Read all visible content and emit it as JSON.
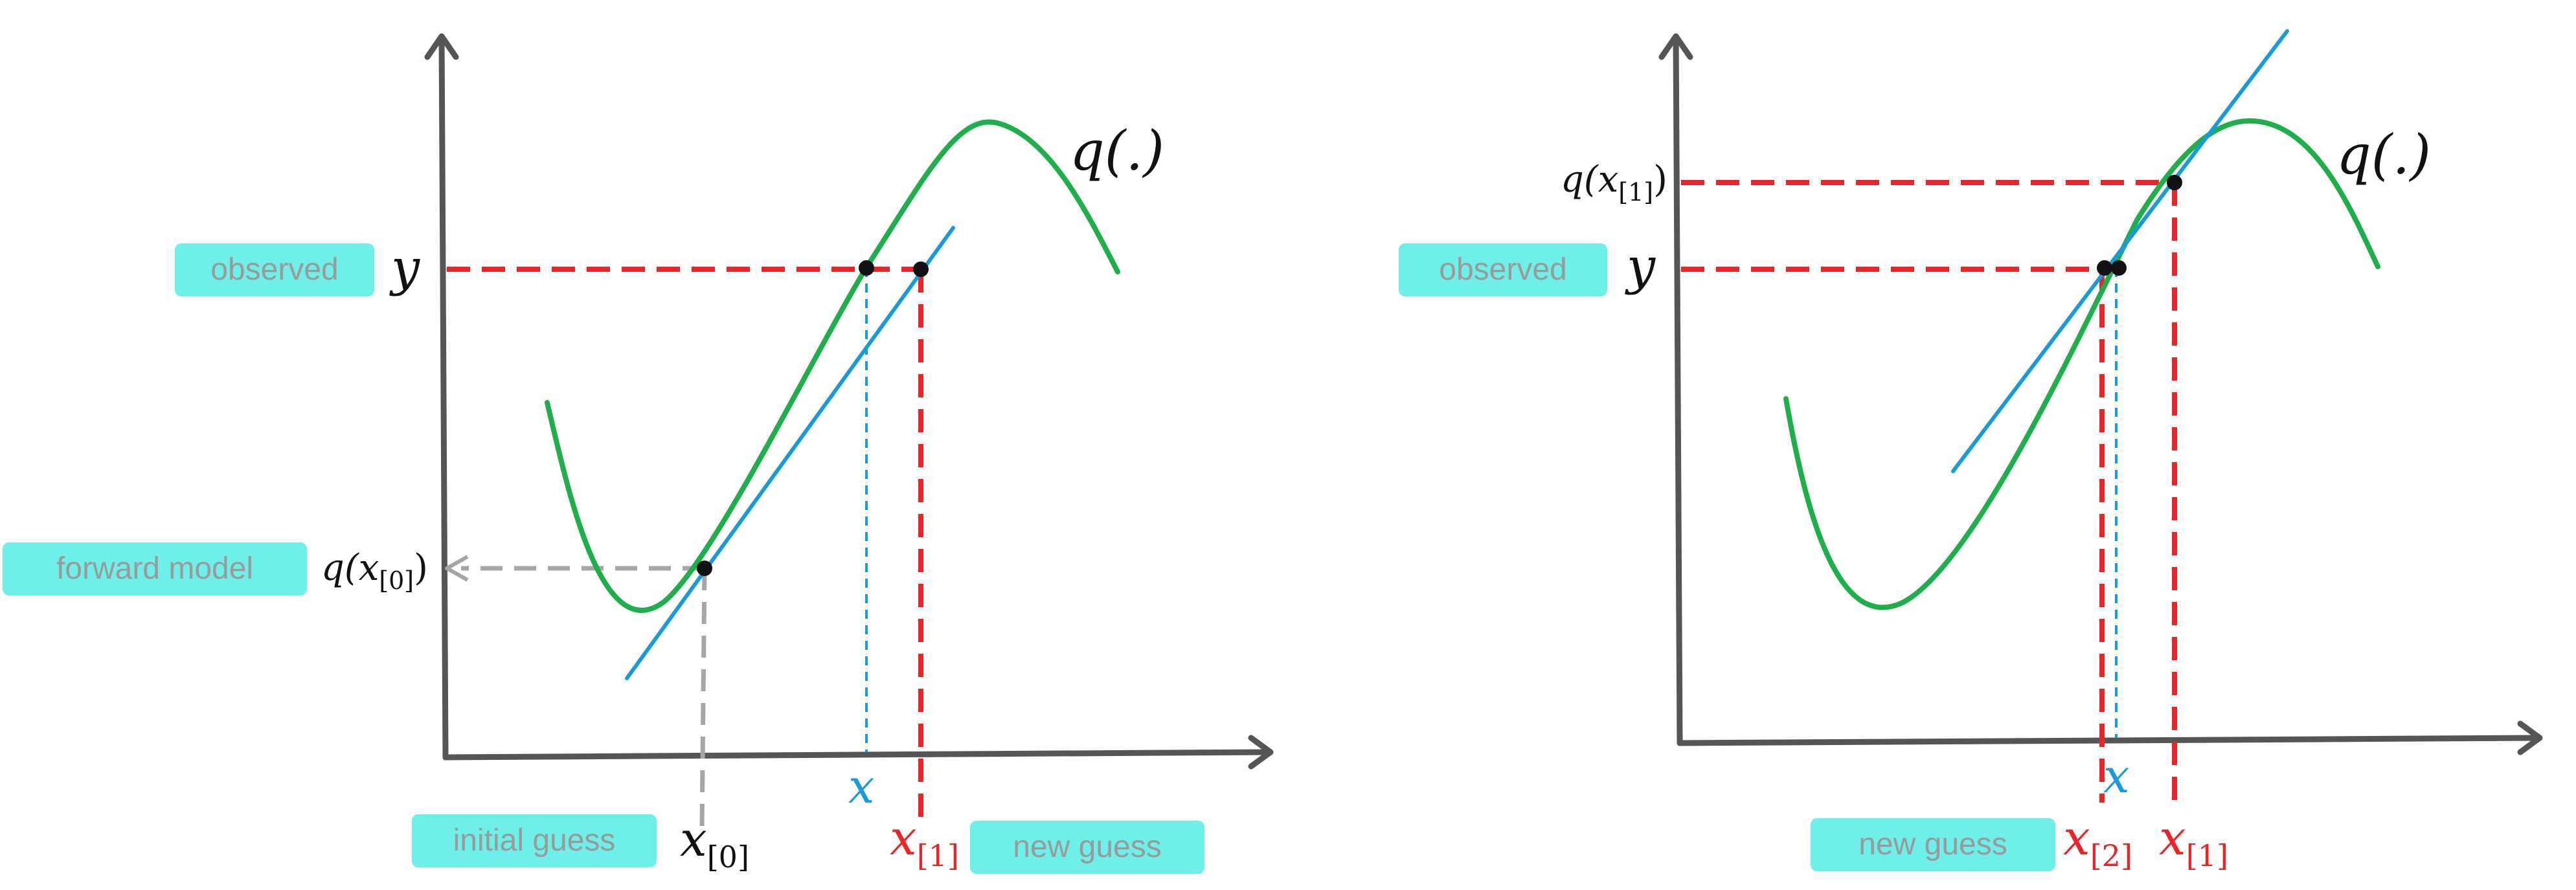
{
  "colors": {
    "axis": "#555555",
    "curve": "#1fae4b",
    "tangent": "#1a9ad6",
    "red": "#e8262a",
    "gray": "#a6a6a6",
    "tag_bg": "#6fefe9",
    "tag_text": "#9a9a9a",
    "point": "#111111"
  },
  "left_panel": {
    "tags": {
      "observed": "observed",
      "forward_model": "forward model",
      "initial_guess": "initial guess",
      "new_guess": "new guess"
    },
    "labels": {
      "y": "y",
      "q_fn": "q(.)",
      "q_x0": {
        "base": "q(x",
        "sub": "[0]",
        "close": ")"
      },
      "x": "x",
      "x0": {
        "base": "x",
        "sub": "[0]"
      },
      "x1": {
        "base": "x",
        "sub": "[1]"
      }
    }
  },
  "right_panel": {
    "tags": {
      "observed": "observed",
      "new_guess": "new guess"
    },
    "labels": {
      "y": "y",
      "q_fn": "q(.)",
      "q_x1": {
        "base": "q(x",
        "sub": "[1]",
        "close": ")"
      },
      "x": "x",
      "x2": {
        "base": "x",
        "sub": "[2]"
      },
      "x1": {
        "base": "x",
        "sub": "[1]"
      }
    }
  }
}
